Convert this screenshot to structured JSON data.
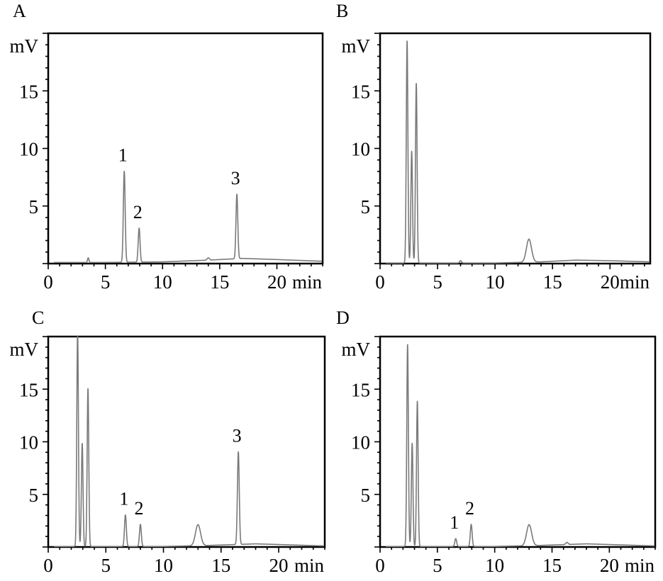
{
  "figure": {
    "x_unit": "min",
    "y_unit": "mV"
  },
  "chart_data": [
    {
      "panel": "A",
      "type": "line",
      "xlim": [
        0,
        24
      ],
      "ylim": [
        0,
        20
      ],
      "xticks": [
        0,
        5,
        10,
        15,
        20
      ],
      "yticks": [
        5,
        10,
        15
      ],
      "xlabel": "min",
      "ylabel": "mV",
      "baseline": [
        [
          0,
          0.1
        ],
        [
          5,
          0.1
        ],
        [
          10,
          0.15
        ],
        [
          14,
          0.3
        ],
        [
          17,
          0.45
        ],
        [
          20,
          0.35
        ],
        [
          24,
          0.2
        ]
      ],
      "peaks": [
        {
          "x": 3.5,
          "height": 0.4,
          "width": 0.06
        },
        {
          "x": 6.65,
          "height": 7.9,
          "width": 0.08,
          "label": "1"
        },
        {
          "x": 7.95,
          "height": 2.95,
          "width": 0.08,
          "label": "2"
        },
        {
          "x": 14.0,
          "height": 0.2,
          "width": 0.1
        },
        {
          "x": 16.5,
          "height": 5.6,
          "width": 0.08,
          "label": "3"
        }
      ]
    },
    {
      "panel": "B",
      "type": "line",
      "xlim": [
        0,
        23.5
      ],
      "ylim": [
        0,
        20
      ],
      "xticks": [
        0,
        5,
        10,
        15,
        20
      ],
      "yticks": [
        5,
        10,
        15
      ],
      "xlabel": "min",
      "ylabel": "mV",
      "baseline": [
        [
          0,
          0.05
        ],
        [
          10,
          0.05
        ],
        [
          14,
          0.15
        ],
        [
          17,
          0.3
        ],
        [
          20,
          0.25
        ],
        [
          23.5,
          0.15
        ]
      ],
      "peaks": [
        {
          "x": 2.35,
          "height": 19.3,
          "width": 0.07
        },
        {
          "x": 2.75,
          "height": 9.7,
          "width": 0.07
        },
        {
          "x": 3.15,
          "height": 15.6,
          "width": 0.07
        },
        {
          "x": 7.0,
          "height": 0.2,
          "width": 0.08
        },
        {
          "x": 12.95,
          "height": 2.0,
          "width": 0.22
        }
      ]
    },
    {
      "panel": "C",
      "type": "line",
      "xlim": [
        0,
        24
      ],
      "ylim": [
        0,
        20
      ],
      "xticks": [
        0,
        5,
        10,
        15,
        20
      ],
      "yticks": [
        5,
        10,
        15
      ],
      "xlabel": "min",
      "ylabel": "mV",
      "baseline": [
        [
          0,
          0.05
        ],
        [
          10,
          0.05
        ],
        [
          14,
          0.15
        ],
        [
          18,
          0.3
        ],
        [
          21,
          0.2
        ],
        [
          24,
          0.1
        ]
      ],
      "peaks": [
        {
          "x": 2.55,
          "height": 20.5,
          "width": 0.07
        },
        {
          "x": 2.95,
          "height": 9.8,
          "width": 0.07
        },
        {
          "x": 3.45,
          "height": 15.0,
          "width": 0.07
        },
        {
          "x": 6.7,
          "height": 3.0,
          "width": 0.08,
          "label": "1"
        },
        {
          "x": 8.0,
          "height": 2.1,
          "width": 0.08,
          "label": "2"
        },
        {
          "x": 13.0,
          "height": 2.0,
          "width": 0.22
        },
        {
          "x": 16.5,
          "height": 8.8,
          "width": 0.08,
          "label": "3"
        }
      ]
    },
    {
      "panel": "D",
      "type": "line",
      "xlim": [
        0,
        24
      ],
      "ylim": [
        0,
        20
      ],
      "xticks": [
        0,
        5,
        10,
        15,
        20
      ],
      "yticks": [
        5,
        10,
        15
      ],
      "xlabel": "min",
      "ylabel": "mV",
      "baseline": [
        [
          0,
          0.05
        ],
        [
          10,
          0.05
        ],
        [
          14,
          0.15
        ],
        [
          18,
          0.3
        ],
        [
          21,
          0.2
        ],
        [
          24,
          0.1
        ]
      ],
      "peaks": [
        {
          "x": 2.4,
          "height": 19.2,
          "width": 0.07
        },
        {
          "x": 2.8,
          "height": 9.8,
          "width": 0.07
        },
        {
          "x": 3.25,
          "height": 13.8,
          "width": 0.07
        },
        {
          "x": 6.6,
          "height": 0.75,
          "width": 0.08,
          "label": "1"
        },
        {
          "x": 7.95,
          "height": 2.1,
          "width": 0.08,
          "label": "2"
        },
        {
          "x": 13.0,
          "height": 2.0,
          "width": 0.22
        },
        {
          "x": 16.3,
          "height": 0.2,
          "width": 0.1
        }
      ]
    }
  ]
}
